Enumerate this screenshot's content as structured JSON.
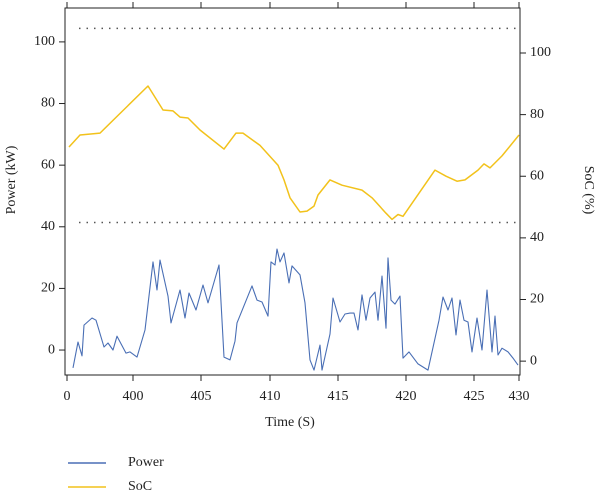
{
  "chart_data": {
    "type": "line",
    "xlabel": "Time (S)",
    "ylabel": "Power (kW)",
    "y2label": "SoC (%)",
    "xlim": [
      -2,
      453
    ],
    "xticks": [
      {
        "value": 0,
        "label": "0"
      },
      {
        "value": 66,
        "label": "400"
      },
      {
        "value": 134,
        "label": "405"
      },
      {
        "value": 203,
        "label": "410"
      },
      {
        "value": 271,
        "label": "415"
      },
      {
        "value": 339,
        "label": "420"
      },
      {
        "value": 407,
        "label": "425"
      },
      {
        "value": 452,
        "label": "430"
      }
    ],
    "ylim": [
      -8.1,
      111
    ],
    "yticks": [
      0,
      20,
      40,
      60,
      80,
      100
    ],
    "y2lim": [
      -4.5,
      114.6
    ],
    "y2ticks": [
      0,
      20,
      40,
      60,
      80,
      100
    ],
    "y2_ref_lines": [
      108,
      45
    ],
    "legend": "bottom-left",
    "series": [
      {
        "name": "Power",
        "color": "#4a6fb5",
        "x": [
          6,
          11,
          15,
          17,
          25,
          29,
          37,
          41,
          46,
          50,
          59,
          63,
          70,
          78,
          86,
          90,
          93,
          101,
          104,
          113,
          118,
          122,
          129,
          136,
          141,
          152,
          157,
          163,
          168,
          170,
          185,
          190,
          195,
          201,
          204,
          208,
          210,
          213,
          217,
          222,
          225,
          233,
          238,
          243,
          247,
          253,
          255,
          263,
          266,
          273,
          278,
          283,
          287,
          291,
          295,
          299,
          303,
          308,
          311,
          315,
          319,
          321,
          324,
          328,
          333,
          336,
          342,
          351,
          361,
          372,
          376,
          381,
          385,
          389,
          393,
          397,
          401,
          405,
          410,
          415,
          420,
          425,
          428,
          431,
          435,
          441,
          446,
          451
        ],
        "values": [
          -5.8,
          2.6,
          -1.9,
          8.1,
          10.4,
          9.7,
          1,
          2.3,
          0,
          4.5,
          -1,
          -0.6,
          -2.3,
          6.5,
          28.6,
          19.5,
          29.2,
          17.5,
          8.8,
          19.5,
          10.4,
          18.5,
          13,
          21.1,
          15.3,
          27.6,
          -2.3,
          -3.2,
          2.9,
          8.8,
          20.8,
          16.2,
          15.6,
          11,
          28.6,
          27.6,
          32.8,
          28.6,
          31.5,
          21.8,
          27.3,
          24.4,
          15.3,
          -3.2,
          -6.5,
          1.6,
          -6.5,
          5.2,
          16.9,
          9.1,
          11.7,
          12,
          12,
          6.5,
          17.9,
          9.7,
          16.9,
          18.8,
          9.7,
          24,
          7.1,
          29.9,
          16.2,
          14.9,
          17.5,
          -2.6,
          -0.6,
          -4.5,
          -6.5,
          9.7,
          17.2,
          13,
          16.9,
          4.9,
          16.2,
          9.7,
          9.1,
          -0.6,
          10.4,
          0,
          19.5,
          -0.6,
          11,
          -1.6,
          0.6,
          -0.6,
          -2.6,
          -4.9
        ]
      },
      {
        "name": "SoC",
        "color": "#f2c21b",
        "axis": "y2",
        "x": [
          2,
          13,
          33,
          81,
          96,
          106,
          113,
          121,
          133,
          157,
          169,
          176,
          193,
          211,
          217,
          223,
          233,
          240,
          247,
          251,
          263,
          275,
          295,
          305,
          319,
          325,
          331,
          336,
          368,
          379,
          390,
          398,
          411,
          417,
          423,
          435,
          452
        ],
        "values": [
          69.5,
          73.4,
          74,
          89.3,
          81.5,
          81.2,
          79.2,
          78.9,
          75,
          68.8,
          74,
          74,
          70,
          63.6,
          58.8,
          53,
          48.4,
          48.7,
          50.3,
          53.9,
          58.8,
          57.1,
          55.5,
          53,
          48,
          46,
          47.6,
          47,
          62,
          60,
          58.4,
          58.8,
          62,
          64,
          62.7,
          66.6,
          73.4
        ]
      }
    ]
  }
}
